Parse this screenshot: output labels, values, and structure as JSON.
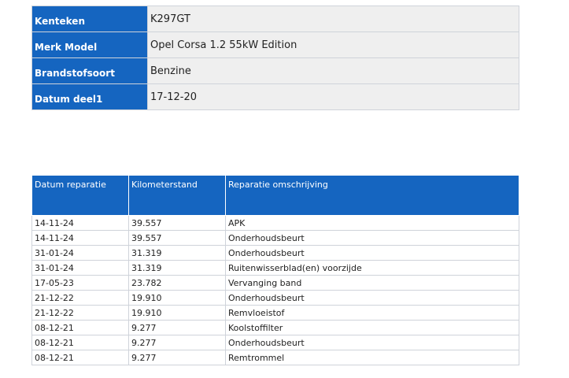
{
  "vehicle": {
    "rows": [
      {
        "label": "Kenteken",
        "value": "K297GT"
      },
      {
        "label": "Merk Model",
        "value": "Opel Corsa 1.2 55kW Edition"
      },
      {
        "label": "Brandstofsoort",
        "value": "Benzine"
      },
      {
        "label": "Datum deel1",
        "value": "17-12-20"
      }
    ]
  },
  "repairs": {
    "headers": {
      "date": "Datum reparatie",
      "km": "Kilometerstand",
      "description": "Reparatie omschrijving"
    },
    "rows": [
      {
        "date": "14-11-24",
        "km": "39.557",
        "description": "APK"
      },
      {
        "date": "14-11-24",
        "km": "39.557",
        "description": "Onderhoudsbeurt"
      },
      {
        "date": "31-01-24",
        "km": "31.319",
        "description": "Onderhoudsbeurt"
      },
      {
        "date": "31-01-24",
        "km": "31.319",
        "description": "Ruitenwisserblad(en) voorzijde"
      },
      {
        "date": "17-05-23",
        "km": "23.782",
        "description": "Vervanging band"
      },
      {
        "date": "21-12-22",
        "km": "19.910",
        "description": "Onderhoudsbeurt"
      },
      {
        "date": "21-12-22",
        "km": "19.910",
        "description": "Remvloeistof"
      },
      {
        "date": "08-12-21",
        "km": "9.277",
        "description": "Koolstoffilter"
      },
      {
        "date": "08-12-21",
        "km": "9.277",
        "description": "Onderhoudsbeurt"
      },
      {
        "date": "08-12-21",
        "km": "9.277",
        "description": "Remtrommel"
      }
    ]
  },
  "colors": {
    "header_blue": "#1565c0",
    "value_background": "#efefef"
  }
}
